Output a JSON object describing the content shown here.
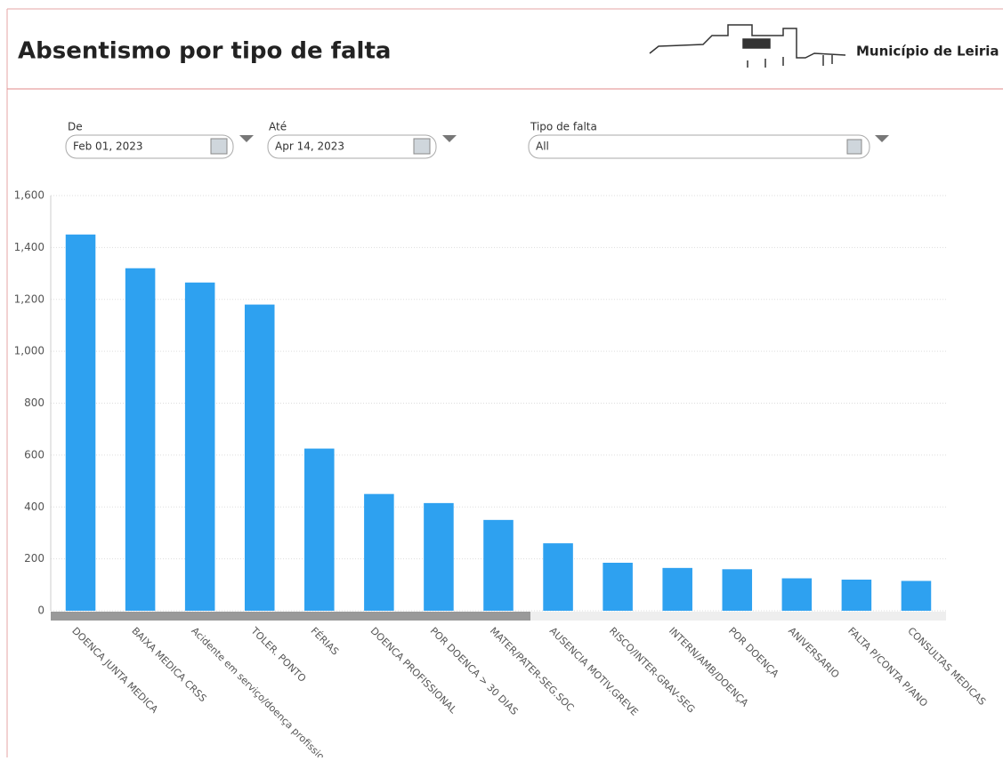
{
  "header": {
    "title": "Absentismo por tipo de falta",
    "brand": "Município de Leiria"
  },
  "filters": [
    {
      "label": "De",
      "value": "Feb 01, 2023"
    },
    {
      "label": "Até",
      "value": "Apr 14, 2023"
    },
    {
      "label": "Tipo de falta",
      "value": "All"
    }
  ],
  "chart_data": {
    "type": "bar",
    "categories": [
      "DOENCA JUNTA MEDICA",
      "BAIXA MEDICA CRSS",
      "Acidente em serviço/doença profissional",
      "TOLER. PONTO",
      "FÉRIAS",
      "DOENCA PROFISSIONAL",
      "POR DOENCA > 30 DIAS",
      "MATER/PATER-SEG.SOC",
      "AUSENCIA MOTIV.GREVE",
      "RISCO/INTER-GRAV-SEG",
      "INTERN/AMB/DOENÇA",
      "POR DOENÇA",
      "ANIVERSARIO",
      "FALTA P/CONTA P/ANO",
      "CONSULTAS MEDICAS"
    ],
    "values": [
      1450,
      1320,
      1265,
      1180,
      625,
      450,
      415,
      350,
      260,
      185,
      165,
      160,
      125,
      120,
      115
    ],
    "color": "#2ea1f0",
    "ylim": [
      0,
      1600
    ],
    "yticks": [
      0,
      200,
      400,
      600,
      800,
      {
        "value": 1000,
        "label": "1,000"
      },
      {
        "value": 1200,
        "label": "1,200"
      },
      {
        "value": 1400,
        "label": "1,400"
      },
      {
        "value": 1600,
        "label": "1,600"
      }
    ],
    "grid": true
  }
}
